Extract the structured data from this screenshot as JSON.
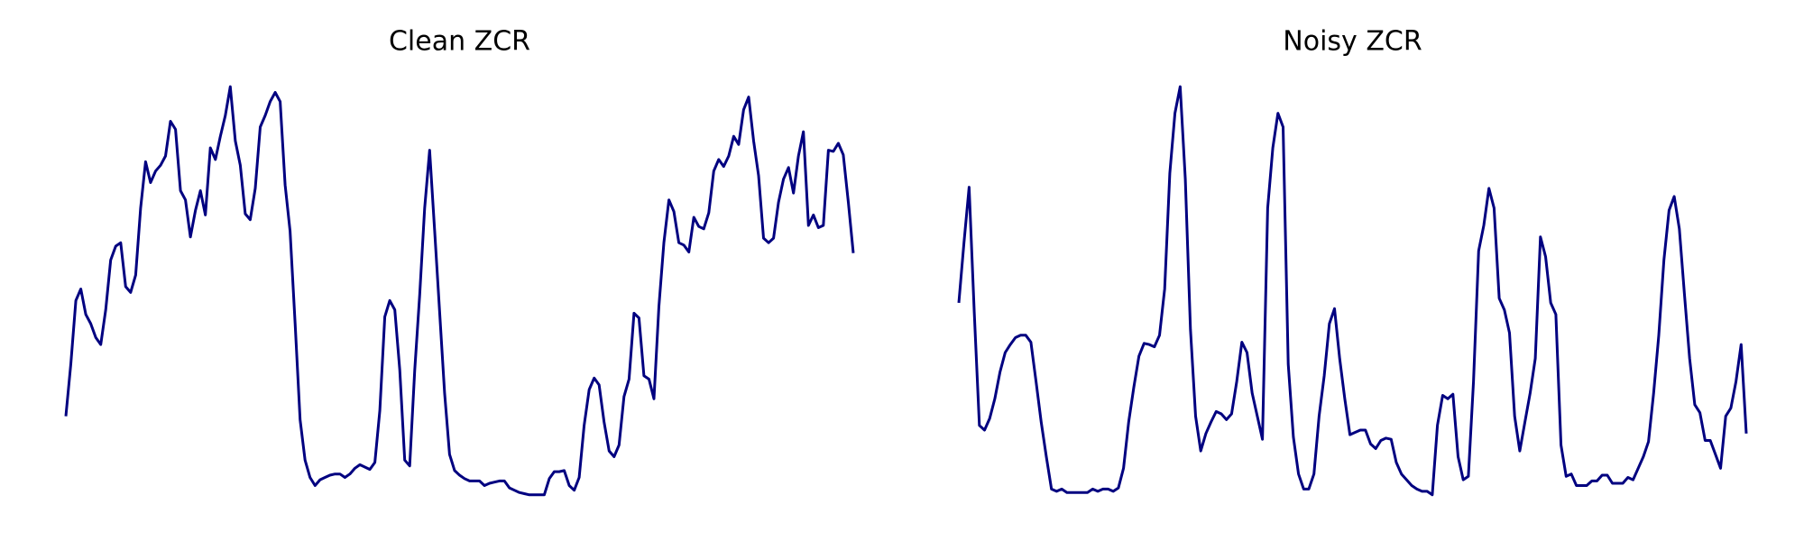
{
  "chart_data": [
    {
      "type": "line",
      "title": "Clean ZCR",
      "color": "#000080",
      "ylim": [
        0,
        400
      ],
      "values": [
        90,
        135,
        190,
        200,
        178,
        170,
        158,
        152,
        182,
        225,
        237,
        240,
        202,
        197,
        212,
        270,
        310,
        292,
        302,
        307,
        315,
        345,
        338,
        285,
        277,
        245,
        268,
        285,
        264,
        322,
        312,
        332,
        350,
        375,
        328,
        307,
        265,
        260,
        287,
        340,
        350,
        362,
        370,
        362,
        290,
        250,
        170,
        87,
        52,
        37,
        30,
        35,
        37,
        39,
        40,
        40,
        37,
        40,
        45,
        48,
        46,
        44,
        50,
        95,
        176,
        190,
        182,
        130,
        52,
        47,
        130,
        195,
        270,
        320,
        250,
        180,
        110,
        57,
        43,
        39,
        36,
        34,
        34,
        34,
        30,
        32,
        33,
        34,
        34,
        28,
        26,
        24,
        23,
        22,
        22,
        22,
        22,
        36,
        42,
        42,
        43,
        30,
        26,
        37,
        82,
        113,
        123,
        117,
        85,
        60,
        55,
        65,
        107,
        122,
        179,
        175,
        125,
        122,
        105,
        185,
        240,
        277,
        267,
        240,
        238,
        232,
        262,
        254,
        252,
        266,
        302,
        312,
        306,
        315,
        332,
        325,
        355,
        366,
        328,
        298,
        244,
        240,
        244,
        275,
        295,
        305,
        283,
        315,
        336,
        255,
        264,
        253,
        255,
        320,
        319,
        326,
        316,
        275,
        231
      ]
    },
    {
      "type": "line",
      "title": "Noisy ZCR",
      "color": "#000080",
      "ylim": [
        0,
        400
      ],
      "values": [
        188,
        240,
        288,
        180,
        82,
        78,
        88,
        105,
        128,
        145,
        152,
        158,
        160,
        160,
        154,
        120,
        85,
        55,
        27,
        25,
        27,
        24,
        24,
        24,
        24,
        24,
        27,
        25,
        27,
        27,
        25,
        28,
        45,
        85,
        115,
        142,
        153,
        152,
        150,
        160,
        200,
        300,
        352,
        375,
        295,
        165,
        90,
        60,
        75,
        85,
        94,
        92,
        87,
        92,
        120,
        154,
        145,
        110,
        90,
        70,
        270,
        322,
        352,
        340,
        135,
        72,
        40,
        27,
        27,
        40,
        90,
        125,
        170,
        183,
        140,
        105,
        74,
        76,
        78,
        78,
        66,
        62,
        69,
        71,
        70,
        50,
        40,
        35,
        30,
        27,
        25,
        25,
        22,
        82,
        108,
        105,
        109,
        55,
        35,
        38,
        120,
        233,
        255,
        287,
        270,
        192,
        182,
        162,
        90,
        60,
        85,
        110,
        140,
        245,
        228,
        188,
        178,
        65,
        38,
        40,
        30,
        30,
        30,
        34,
        34,
        39,
        39,
        32,
        32,
        32,
        37,
        35,
        45,
        55,
        68,
        110,
        160,
        225,
        268,
        280,
        252,
        195,
        140,
        100,
        93,
        69,
        69,
        57,
        45,
        90,
        97,
        120,
        152,
        75
      ]
    }
  ]
}
